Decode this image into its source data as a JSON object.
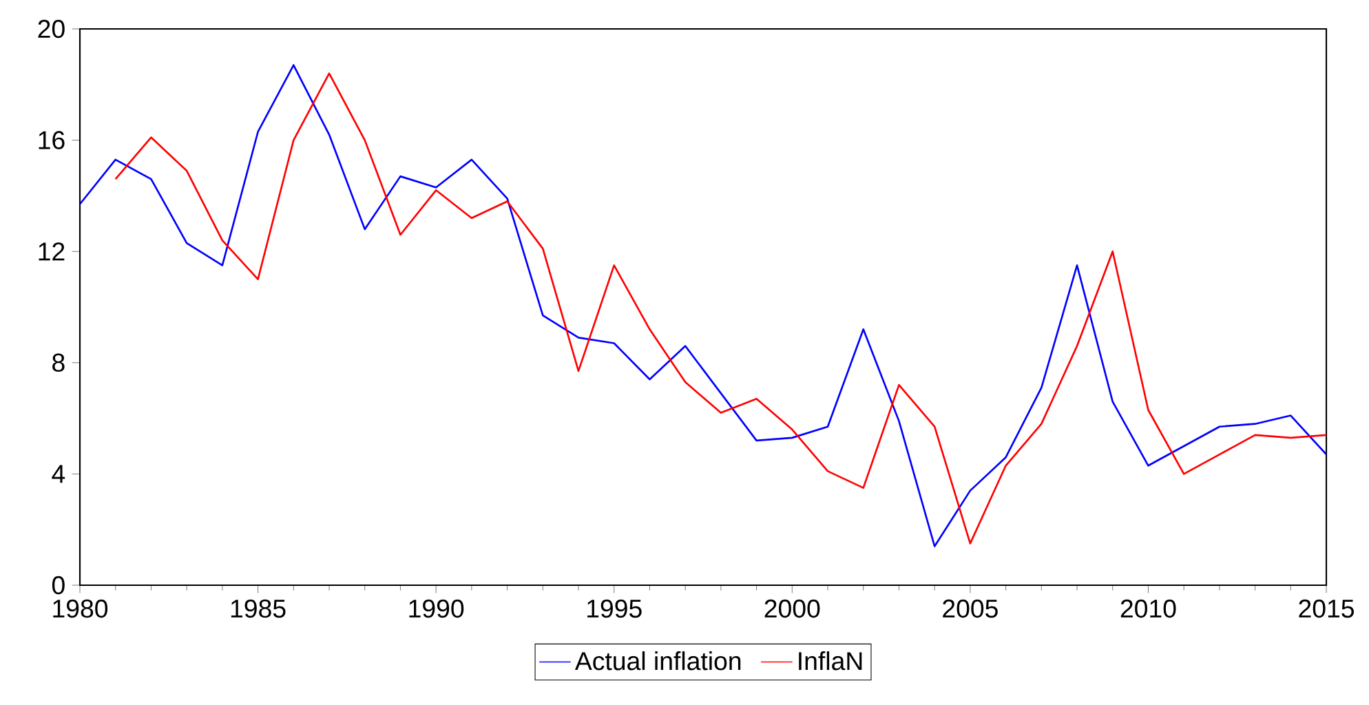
{
  "chart_data": {
    "type": "line",
    "x": [
      1980,
      1981,
      1982,
      1983,
      1984,
      1985,
      1986,
      1987,
      1988,
      1989,
      1990,
      1991,
      1992,
      1993,
      1994,
      1995,
      1996,
      1997,
      1998,
      1999,
      2000,
      2001,
      2002,
      2003,
      2004,
      2005,
      2006,
      2007,
      2008,
      2009,
      2010,
      2011,
      2012,
      2013,
      2014,
      2015
    ],
    "series": [
      {
        "name": "Actual inflation",
        "color": "#0000ff",
        "values": [
          13.7,
          15.3,
          14.6,
          12.3,
          11.5,
          16.3,
          18.7,
          16.2,
          12.8,
          14.7,
          14.3,
          15.3,
          13.9,
          9.7,
          8.9,
          8.7,
          7.4,
          8.6,
          6.9,
          5.2,
          5.3,
          5.7,
          9.2,
          5.9,
          1.4,
          3.4,
          4.6,
          7.1,
          11.5,
          6.6,
          4.3,
          5.0,
          5.7,
          5.8,
          6.1,
          4.7
        ]
      },
      {
        "name": "InflaN",
        "color": "#ff0000",
        "values": [
          null,
          14.6,
          16.1,
          14.9,
          12.4,
          11.0,
          16.0,
          18.4,
          16.0,
          12.6,
          14.2,
          13.2,
          13.8,
          12.1,
          7.7,
          11.5,
          9.2,
          7.3,
          6.2,
          6.7,
          5.6,
          4.1,
          3.5,
          7.2,
          5.7,
          1.5,
          4.3,
          5.8,
          8.6,
          12.0,
          6.3,
          4.0,
          4.7,
          5.4,
          5.3,
          5.4
        ]
      }
    ],
    "xlim": [
      1980,
      2015
    ],
    "xticks": [
      1980,
      1985,
      1990,
      1995,
      2000,
      2005,
      2010,
      2015
    ],
    "ylim": [
      0,
      20
    ],
    "yticks": [
      0,
      4,
      8,
      12,
      16,
      20
    ],
    "grid": false,
    "legend": "bottom",
    "marker": "none",
    "line_style": "solid"
  }
}
